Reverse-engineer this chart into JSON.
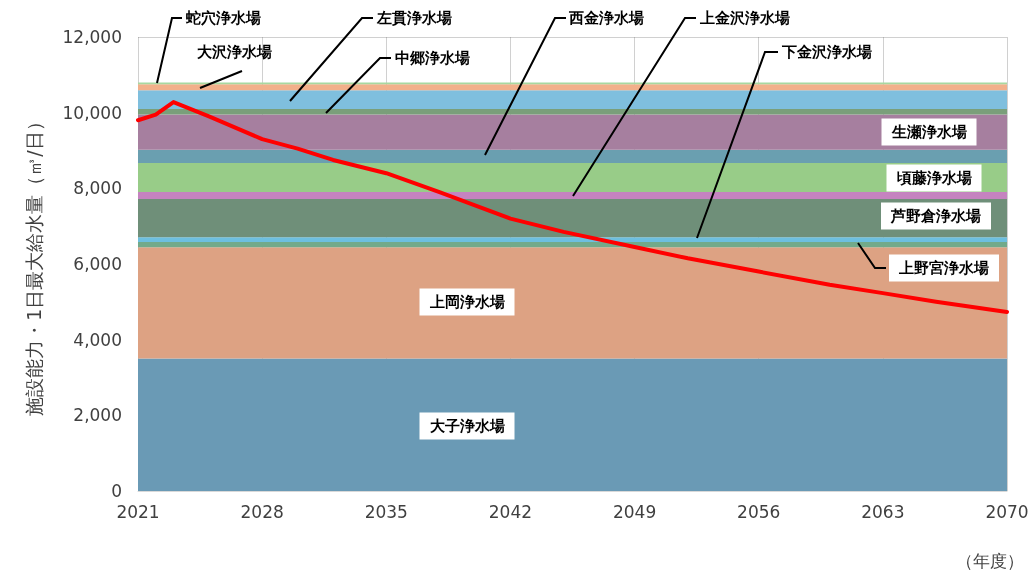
{
  "chart_data": {
    "type": "area",
    "stacked": true,
    "ylabel": "施設能力・1日最大給水量（㎥/日）",
    "xlabel": "（年度）",
    "xlim": [
      2021,
      2070
    ],
    "xticks": [
      2021,
      2028,
      2035,
      2042,
      2049,
      2056,
      2063,
      2070
    ],
    "ylim": [
      0,
      12000
    ],
    "yticks": [
      {
        "value": 0,
        "label": "0"
      },
      {
        "value": 2000,
        "label": "2,000"
      },
      {
        "value": 4000,
        "label": "4,000"
      },
      {
        "value": 6000,
        "label": "6,000"
      },
      {
        "value": 8000,
        "label": "8,000"
      },
      {
        "value": 10000,
        "label": "10,000"
      },
      {
        "value": 12000,
        "label": "12,000"
      }
    ],
    "grid": true,
    "legend": false,
    "series": [
      {
        "name": "大子浄水場",
        "color": "#6a9ab5",
        "x": [
          2021,
          2070
        ],
        "values": [
          3500,
          3500
        ]
      },
      {
        "name": "上岡浄水場",
        "color": "#dda283",
        "x": [
          2021,
          2070
        ],
        "values": [
          2940,
          2940
        ]
      },
      {
        "name": "上野宮浄水場",
        "color": "#72aa8a",
        "x": [
          2021,
          2070
        ],
        "values": [
          140,
          140
        ]
      },
      {
        "name": "下金沢浄水場",
        "color": "#6dbfdf",
        "x": [
          2021,
          2070
        ],
        "values": [
          130,
          130
        ]
      },
      {
        "name": "芦野倉浄水場",
        "color": "#6f8f79",
        "x": [
          2021,
          2070
        ],
        "values": [
          1010,
          1010
        ]
      },
      {
        "name": "上金沢浄水場",
        "color": "#c583c0",
        "x": [
          2021,
          2070
        ],
        "values": [
          180,
          180
        ]
      },
      {
        "name": "頃藤浄水場",
        "color": "#98cc88",
        "x": [
          2021,
          2070
        ],
        "values": [
          770,
          770
        ]
      },
      {
        "name": "西金浄水場",
        "color": "#6a9fb0",
        "x": [
          2021,
          2070
        ],
        "values": [
          350,
          350
        ]
      },
      {
        "name": "生瀬浄水場",
        "color": "#a67f9f",
        "x": [
          2021,
          2070
        ],
        "values": [
          930,
          930
        ]
      },
      {
        "name": "中郷浄水場",
        "color": "#7a9f7a",
        "x": [
          2021,
          2070
        ],
        "values": [
          150,
          150
        ]
      },
      {
        "name": "左貫浄水場",
        "color": "#7fbfde",
        "x": [
          2021,
          2070
        ],
        "values": [
          490,
          490
        ]
      },
      {
        "name": "大沢浄水場",
        "color": "#f2b08a",
        "x": [
          2021,
          2070
        ],
        "values": [
          160,
          160
        ]
      },
      {
        "name": "蛇穴浄水場",
        "color": "#a8d8a0",
        "x": [
          2021,
          2070
        ],
        "values": [
          50,
          50
        ]
      },
      {
        "type": "line",
        "color": "#ff0000",
        "x": [
          2021,
          2022,
          2023,
          2025,
          2028,
          2030,
          2032,
          2035,
          2038,
          2040,
          2042,
          2045,
          2049,
          2052,
          2056,
          2060,
          2063,
          2066,
          2070
        ],
        "values": [
          9800,
          9950,
          10280,
          9900,
          9300,
          9050,
          8750,
          8400,
          7900,
          7550,
          7200,
          6850,
          6450,
          6150,
          5800,
          5450,
          5230,
          5000,
          4730
        ]
      }
    ]
  }
}
